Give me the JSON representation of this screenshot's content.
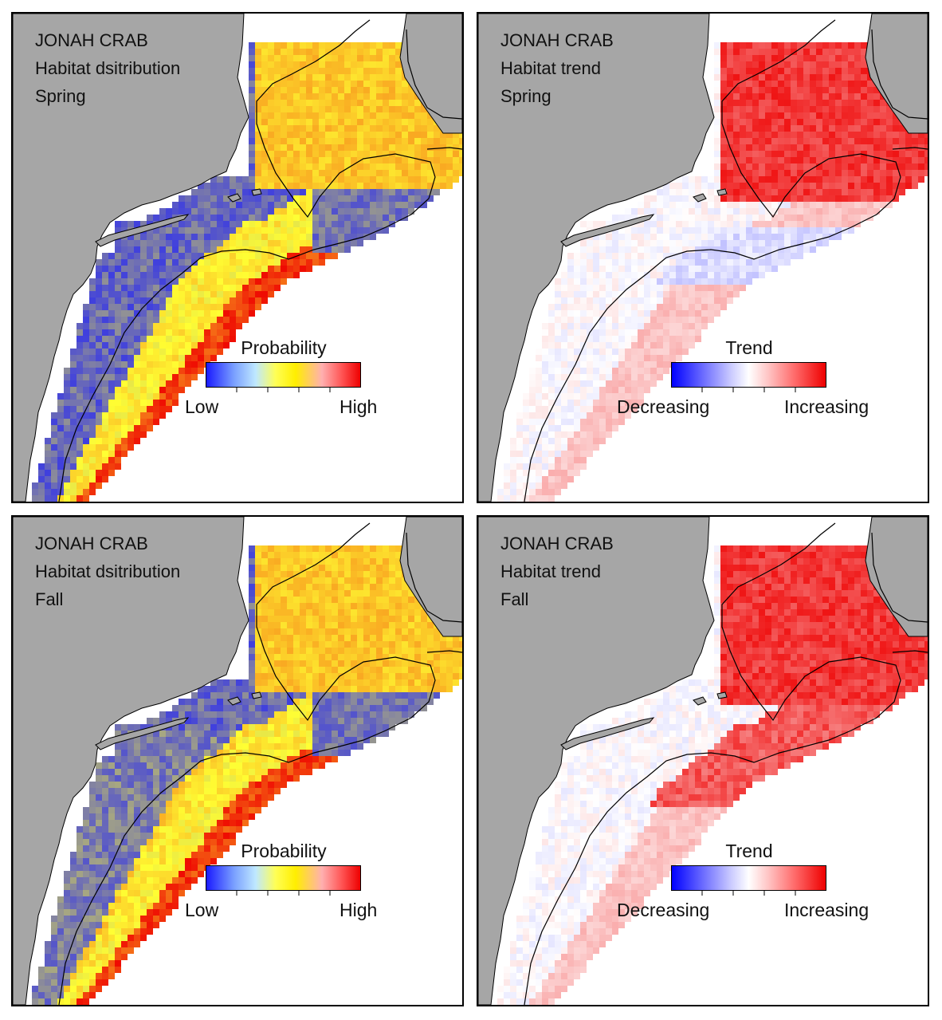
{
  "panels": [
    {
      "id": "spring-distribution",
      "species": "JONAH CRAB",
      "metric": "Habitat dsitribution",
      "season": "Spring",
      "legend": {
        "title": "Probability",
        "low": "Low",
        "high": "High",
        "scale": "probability"
      }
    },
    {
      "id": "spring-trend",
      "species": "JONAH CRAB",
      "metric": "Habitat trend",
      "season": "Spring",
      "legend": {
        "title": "Trend",
        "low": "Decreasing",
        "high": "Increasing",
        "scale": "trend"
      }
    },
    {
      "id": "fall-distribution",
      "species": "JONAH CRAB",
      "metric": "Habitat dsitribution",
      "season": "Fall",
      "legend": {
        "title": "Probability",
        "low": "Low",
        "high": "High",
        "scale": "probability"
      }
    },
    {
      "id": "fall-trend",
      "species": "JONAH CRAB",
      "metric": "Habitat trend",
      "season": "Fall",
      "legend": {
        "title": "Trend",
        "low": "Decreasing",
        "high": "Increasing",
        "scale": "trend"
      }
    }
  ],
  "colors": {
    "land": "#a6a6a6",
    "coast_line": "#000000",
    "prob_low": "#1a1aff",
    "prob_mid": "#ffff33",
    "prob_high": "#ee0000",
    "trend_decreasing": "#0000ff",
    "trend_neutral": "#ffffff",
    "trend_increasing": "#ee0000"
  }
}
